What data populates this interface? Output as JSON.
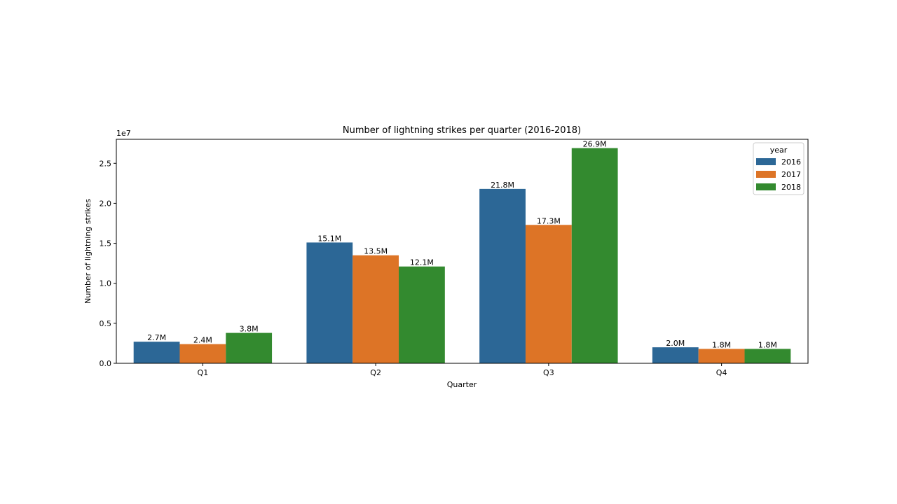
{
  "chart_data": {
    "type": "bar",
    "title": "Number of lightning strikes per quarter (2016-2018)",
    "xlabel": "Quarter",
    "ylabel": "Number of lightning strikes",
    "y_offset_label": "1e7",
    "categories": [
      "Q1",
      "Q2",
      "Q3",
      "Q4"
    ],
    "ylim": [
      0,
      28000000
    ],
    "yticks": [
      0,
      5000000,
      10000000,
      15000000,
      20000000,
      25000000
    ],
    "ytick_labels": [
      "0.0",
      "0.5",
      "1.0",
      "1.5",
      "2.0",
      "2.5"
    ],
    "legend": {
      "title": "year",
      "placement": "top-right"
    },
    "series": [
      {
        "name": "2016",
        "color": "#2c6796",
        "values": [
          2700000,
          15100000,
          21800000,
          2000000
        ],
        "labels": [
          "2.7M",
          "15.1M",
          "21.8M",
          "2.0M"
        ]
      },
      {
        "name": "2017",
        "color": "#dd7426",
        "values": [
          2400000,
          13500000,
          17300000,
          1800000
        ],
        "labels": [
          "2.4M",
          "13.5M",
          "17.3M",
          "1.8M"
        ]
      },
      {
        "name": "2018",
        "color": "#338a2f",
        "values": [
          3800000,
          12100000,
          26900000,
          1800000
        ],
        "labels": [
          "3.8M",
          "12.1M",
          "26.9M",
          "1.8M"
        ]
      }
    ]
  }
}
